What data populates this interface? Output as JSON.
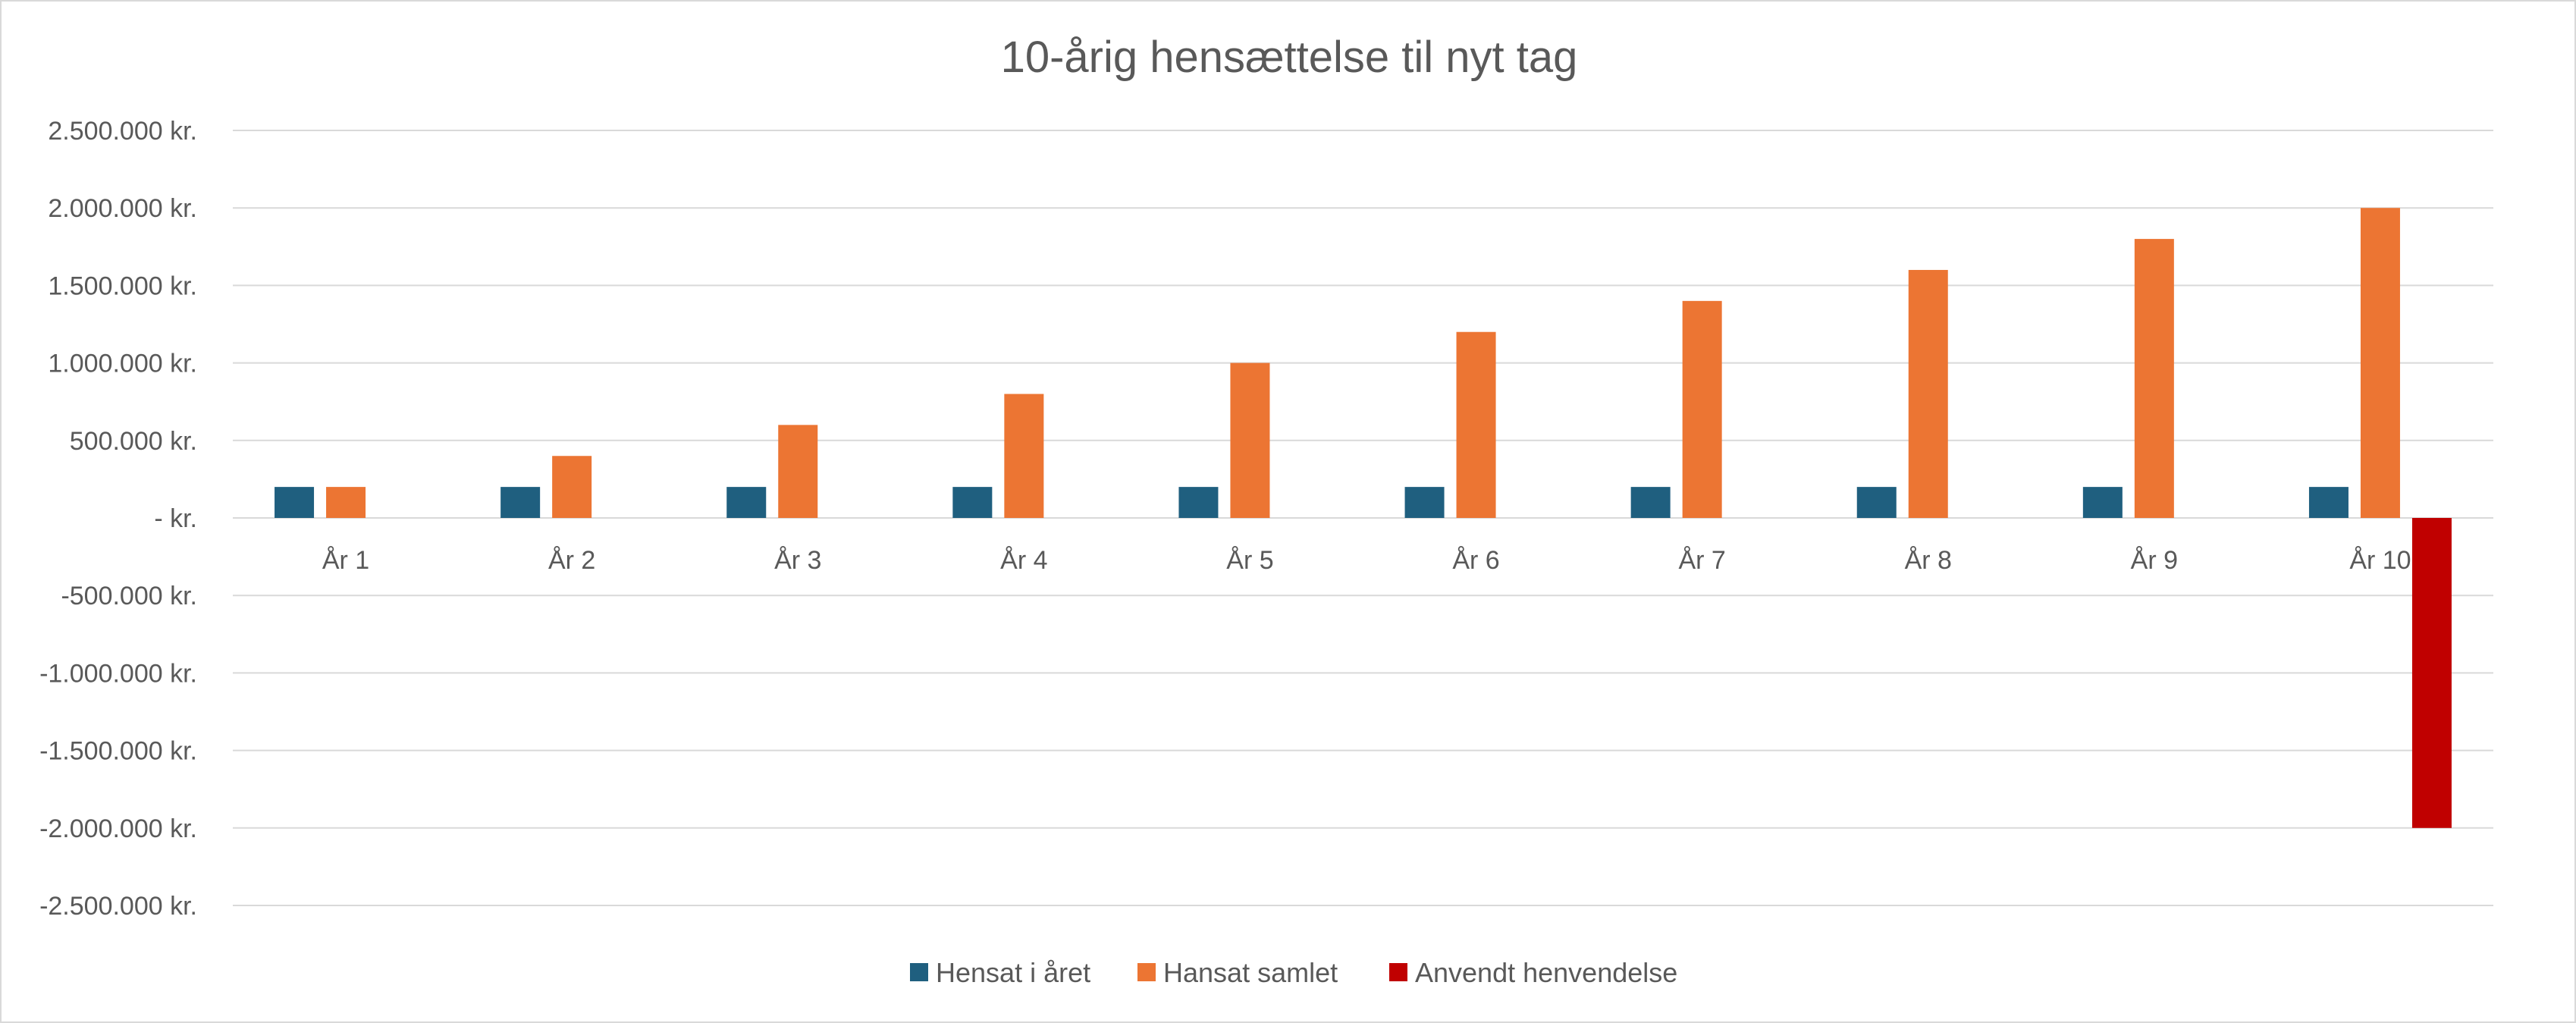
{
  "chart_data": {
    "type": "bar",
    "title": "10-årig hensættelse til nyt tag",
    "xlabel": "",
    "ylabel": "",
    "categories": [
      "År 1",
      "År 2",
      "År 3",
      "År 4",
      "År 5",
      "År 6",
      "År 7",
      "År 8",
      "År 9",
      "År 10"
    ],
    "series": [
      {
        "name": "Hensat i året",
        "color": "#1f5f7f",
        "values": [
          200000,
          200000,
          200000,
          200000,
          200000,
          200000,
          200000,
          200000,
          200000,
          200000
        ]
      },
      {
        "name": "Hansat samlet",
        "color": "#ec7533",
        "values": [
          200000,
          400000,
          600000,
          800000,
          1000000,
          1200000,
          1400000,
          1600000,
          1800000,
          2000000
        ]
      },
      {
        "name": "Anvendt henvendelse",
        "color": "#c00000",
        "values": [
          0,
          0,
          0,
          0,
          0,
          0,
          0,
          0,
          0,
          -2000000
        ]
      }
    ],
    "ylim": [
      -2500000,
      2500000
    ],
    "yticks": [
      2500000,
      2000000,
      1500000,
      1000000,
      500000,
      0,
      -500000,
      -1000000,
      -1500000,
      -2000000,
      -2500000
    ],
    "ytick_labels": [
      "2.500.000 kr.",
      "2.000.000 kr.",
      "1.500.000 kr.",
      "1.000.000 kr.",
      "500.000 kr.",
      "-   kr.",
      "-500.000 kr.",
      "-1.000.000 kr.",
      "-1.500.000 kr.",
      "-2.000.000 kr.",
      "-2.500.000 kr."
    ],
    "grid": true,
    "legend_position": "bottom"
  }
}
